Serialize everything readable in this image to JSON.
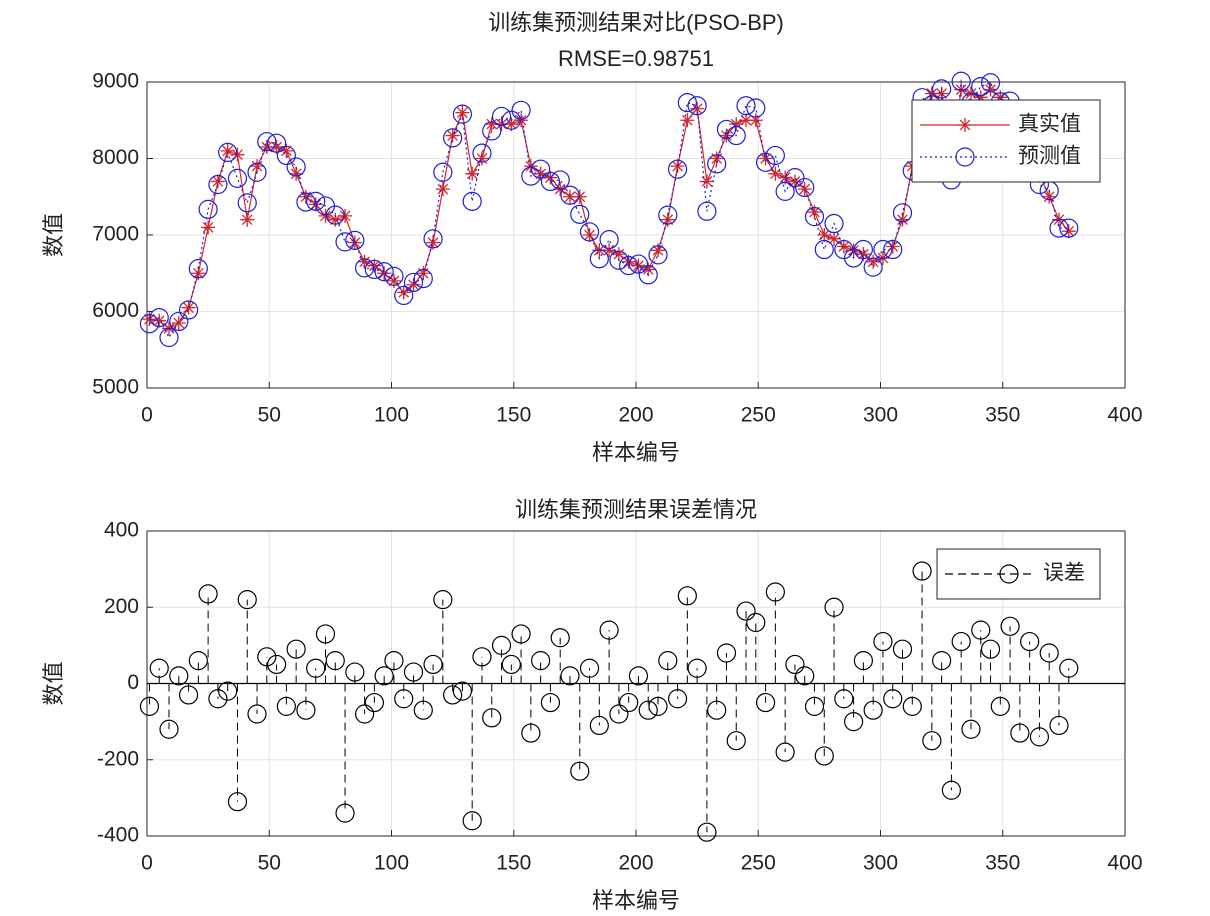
{
  "chart_data": [
    {
      "type": "line",
      "title": "训练集预测结果对比(PSO-BP)",
      "subtitle": "RMSE=0.98751",
      "x_label": "样本编号",
      "y_label": "数值",
      "x": [
        1,
        5,
        9,
        13,
        17,
        21,
        25,
        29,
        33,
        37,
        41,
        45,
        49,
        53,
        57,
        61,
        65,
        69,
        73,
        77,
        81,
        85,
        89,
        93,
        97,
        101,
        105,
        109,
        113,
        117,
        121,
        125,
        129,
        133,
        137,
        141,
        145,
        149,
        153,
        157,
        161,
        165,
        169,
        173,
        177,
        181,
        185,
        189,
        193,
        197,
        201,
        205,
        209,
        213,
        217,
        221,
        225,
        229,
        233,
        237,
        241,
        245,
        249,
        253,
        257,
        261,
        265,
        269,
        273,
        277,
        281,
        285,
        289,
        293,
        297,
        301,
        305,
        309,
        313,
        317,
        321,
        325,
        329,
        333,
        337,
        341,
        345,
        349,
        353,
        357,
        361,
        365,
        369,
        373,
        377
      ],
      "series": [
        {
          "name": "真实值",
          "color": "#d62728",
          "marker": "asterisk",
          "line": "solid",
          "values": [
            5900,
            5880,
            5780,
            5850,
            6050,
            6500,
            7100,
            7700,
            8100,
            8050,
            7200,
            7900,
            8150,
            8150,
            8100,
            7800,
            7500,
            7400,
            7250,
            7200,
            7250,
            6900,
            6650,
            6600,
            6500,
            6400,
            6250,
            6350,
            6500,
            6900,
            7600,
            8300,
            8600,
            7800,
            8000,
            8450,
            8450,
            8450,
            8500,
            7900,
            7800,
            7750,
            7600,
            7500,
            7500,
            7000,
            6800,
            6800,
            6750,
            6650,
            6600,
            6550,
            6800,
            7200,
            7900,
            8500,
            8650,
            7700,
            8000,
            8300,
            8450,
            8500,
            8500,
            8000,
            7800,
            7750,
            7700,
            7600,
            7300,
            7000,
            6950,
            6850,
            6800,
            6750,
            6650,
            6700,
            6850,
            7200,
            7900,
            8500,
            8850,
            8850,
            8000,
            8900,
            8850,
            8800,
            8900,
            8800,
            8600,
            8300,
            8100,
            7800,
            7500,
            7200,
            7050
          ]
        },
        {
          "name": "预测值",
          "color": "#1f1fd6",
          "marker": "circle",
          "line": "dotted",
          "values": [
            5840,
            5920,
            5660,
            5870,
            6020,
            6560,
            7335,
            7660,
            8080,
            7740,
            7420,
            7820,
            8220,
            8200,
            8040,
            7890,
            7430,
            7440,
            7380,
            7260,
            6910,
            6930,
            6570,
            6550,
            6520,
            6460,
            6210,
            6380,
            6430,
            6950,
            7820,
            8270,
            8580,
            7440,
            8070,
            8360,
            8550,
            8500,
            8630,
            7770,
            7860,
            7700,
            7720,
            7520,
            7270,
            7040,
            6690,
            6940,
            6670,
            6600,
            6620,
            6480,
            6740,
            7260,
            7860,
            8730,
            8690,
            7310,
            7930,
            8380,
            8300,
            8690,
            8660,
            7950,
            8040,
            7570,
            7750,
            7620,
            7240,
            6810,
            7150,
            6810,
            6700,
            6810,
            6580,
            6810,
            6810,
            7290,
            7840,
            8795,
            8700,
            8910,
            7720,
            9010,
            8730,
            8940,
            8990,
            8740,
            8750,
            8170,
            8210,
            7660,
            7580,
            7090,
            7090
          ]
        }
      ],
      "xlim": [
        0,
        400
      ],
      "xticks": [
        0,
        50,
        100,
        150,
        200,
        250,
        300,
        350,
        400
      ],
      "ylim": [
        5000,
        9000
      ],
      "yticks": [
        5000,
        6000,
        7000,
        8000,
        9000
      ],
      "grid": true,
      "legend": "northeast"
    },
    {
      "type": "stem",
      "title": "训练集预测结果误差情况",
      "x_label": "样本编号",
      "y_label": "数值",
      "x": [
        1,
        5,
        9,
        13,
        17,
        21,
        25,
        29,
        33,
        37,
        41,
        45,
        49,
        53,
        57,
        61,
        65,
        69,
        73,
        77,
        81,
        85,
        89,
        93,
        97,
        101,
        105,
        109,
        113,
        117,
        121,
        125,
        129,
        133,
        137,
        141,
        145,
        149,
        153,
        157,
        161,
        165,
        169,
        173,
        177,
        181,
        185,
        189,
        193,
        197,
        201,
        205,
        209,
        213,
        217,
        221,
        225,
        229,
        233,
        237,
        241,
        245,
        249,
        253,
        257,
        261,
        265,
        269,
        273,
        277,
        281,
        285,
        289,
        293,
        297,
        301,
        305,
        309,
        313,
        317,
        321,
        325,
        329,
        333,
        337,
        341,
        345,
        349,
        353,
        357,
        361,
        365,
        369,
        373,
        377
      ],
      "series": [
        {
          "name": "误差",
          "color": "#000000",
          "marker": "circle",
          "line": "dashed",
          "values": [
            -60,
            40,
            -120,
            20,
            -30,
            60,
            235,
            -40,
            -20,
            -310,
            220,
            -80,
            70,
            50,
            -60,
            90,
            -70,
            40,
            130,
            60,
            -340,
            30,
            -80,
            -50,
            20,
            60,
            -40,
            30,
            -70,
            50,
            220,
            -30,
            -20,
            -360,
            70,
            -90,
            100,
            50,
            130,
            -130,
            60,
            -50,
            120,
            20,
            -230,
            40,
            -110,
            140,
            -80,
            -50,
            20,
            -70,
            -60,
            60,
            -40,
            230,
            40,
            -390,
            -70,
            80,
            -150,
            190,
            160,
            -50,
            240,
            -180,
            50,
            20,
            -60,
            -190,
            200,
            -40,
            -100,
            60,
            -70,
            110,
            -40,
            90,
            -60,
            295,
            -150,
            60,
            -280,
            110,
            -120,
            140,
            90,
            -60,
            150,
            -130,
            110,
            -140,
            80,
            -110,
            40
          ]
        }
      ],
      "xlim": [
        0,
        400
      ],
      "xticks": [
        0,
        50,
        100,
        150,
        200,
        250,
        300,
        350,
        400
      ],
      "ylim": [
        -400,
        400
      ],
      "yticks": [
        -400,
        -200,
        0,
        200,
        400
      ],
      "grid": true,
      "legend": "northeast"
    }
  ]
}
